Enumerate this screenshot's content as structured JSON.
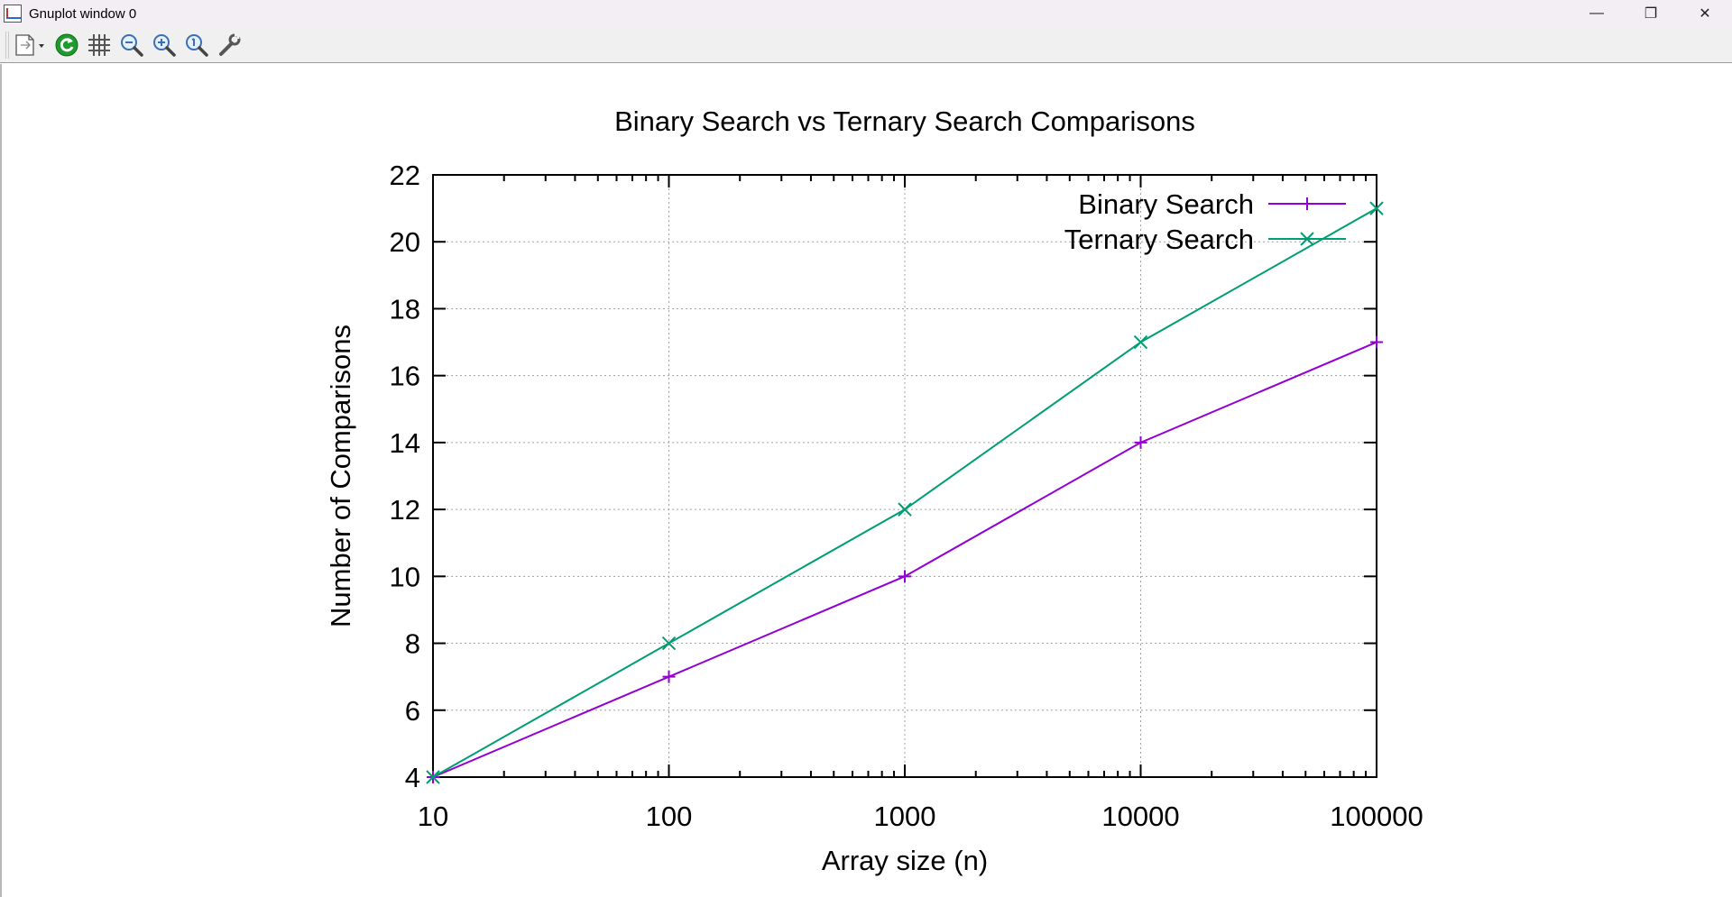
{
  "window": {
    "title": "Gnuplot window 0",
    "icon": "gnuplot-app-icon",
    "controls": {
      "minimize": "—",
      "restore": "❐",
      "close": "✕"
    }
  },
  "toolbar": {
    "items": [
      {
        "name": "copy-to-clipboard-button",
        "icon": "copy-dropdown-icon"
      },
      {
        "name": "replot-button",
        "icon": "replot-icon"
      },
      {
        "name": "toggle-grid-button",
        "icon": "grid-icon"
      },
      {
        "name": "zoom-previous-button",
        "icon": "zoom-out-icon"
      },
      {
        "name": "zoom-next-button",
        "icon": "zoom-in-icon"
      },
      {
        "name": "autoscale-button",
        "icon": "zoom-reset-icon"
      },
      {
        "name": "options-button",
        "icon": "wrench-icon"
      }
    ]
  },
  "chart_data": {
    "type": "line",
    "title": "Binary Search vs Ternary Search Comparisons",
    "xlabel": "Array size (n)",
    "ylabel": "Number of Comparisons",
    "xscale": "log",
    "xlim": [
      10,
      100000
    ],
    "ylim": [
      4,
      22
    ],
    "xticks": [
      "10",
      "100",
      "1000",
      "10000",
      "100000"
    ],
    "yticks": [
      "4",
      "6",
      "8",
      "10",
      "12",
      "14",
      "16",
      "18",
      "20",
      "22"
    ],
    "grid": true,
    "legend_position": "top-right",
    "series": [
      {
        "name": "Binary Search",
        "color": "#9400d3",
        "marker": "plus",
        "x": [
          10,
          100,
          1000,
          10000,
          100000
        ],
        "y": [
          4,
          7,
          10,
          14,
          17
        ]
      },
      {
        "name": "Ternary Search",
        "color": "#009e73",
        "marker": "cross",
        "x": [
          10,
          100,
          1000,
          10000,
          100000
        ],
        "y": [
          4,
          8,
          12,
          17,
          21
        ]
      }
    ]
  }
}
